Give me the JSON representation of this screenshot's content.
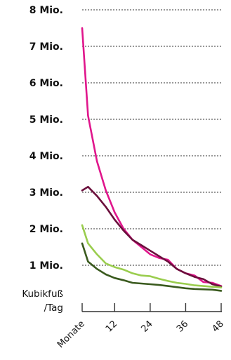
{
  "chart_data": {
    "type": "line",
    "unit_label": [
      "Kubikfuß",
      "/Tag"
    ],
    "x": [
      1,
      3,
      6,
      9,
      12,
      15,
      18,
      21,
      24,
      27,
      30,
      33,
      36,
      39,
      42,
      45,
      48
    ],
    "x_ticks": [
      {
        "value": 1,
        "label": "Monate"
      },
      {
        "value": 12,
        "label": "12"
      },
      {
        "value": 24,
        "label": "24"
      },
      {
        "value": 36,
        "label": "36"
      },
      {
        "value": 48,
        "label": "48"
      }
    ],
    "x_range": [
      1,
      48
    ],
    "y_ticks": [
      {
        "value": 1000000,
        "label": "1 Mio."
      },
      {
        "value": 2000000,
        "label": "2 Mio."
      },
      {
        "value": 3000000,
        "label": "3 Mio."
      },
      {
        "value": 4000000,
        "label": "4 Mio."
      },
      {
        "value": 5000000,
        "label": "5 Mio."
      },
      {
        "value": 6000000,
        "label": "6 Mio."
      },
      {
        "value": 7000000,
        "label": "7 Mio."
      },
      {
        "value": 8000000,
        "label": "8 Mio."
      }
    ],
    "ylim": [
      0,
      8000000
    ],
    "grid": "horizontal-dotted",
    "series": [
      {
        "color": "#e0168c",
        "values": [
          7500000,
          5100000,
          3850000,
          3050000,
          2450000,
          2000000,
          1700000,
          1500000,
          1300000,
          1200000,
          1150000,
          900000,
          780000,
          720000,
          540000,
          520000,
          430000
        ]
      },
      {
        "color": "#6b0f3c",
        "values": [
          3050000,
          3150000,
          2900000,
          2600000,
          2250000,
          1950000,
          1700000,
          1550000,
          1400000,
          1250000,
          1100000,
          900000,
          780000,
          680000,
          620000,
          480000,
          420000
        ]
      },
      {
        "color": "#9acd4e",
        "values": [
          2100000,
          1600000,
          1300000,
          1050000,
          950000,
          880000,
          780000,
          720000,
          700000,
          630000,
          570000,
          520000,
          490000,
          450000,
          430000,
          410000,
          390000
        ]
      },
      {
        "color": "#3a5a1e",
        "values": [
          1600000,
          1100000,
          900000,
          750000,
          650000,
          590000,
          520000,
          500000,
          480000,
          460000,
          430000,
          400000,
          370000,
          350000,
          340000,
          330000,
          300000
        ]
      }
    ]
  }
}
